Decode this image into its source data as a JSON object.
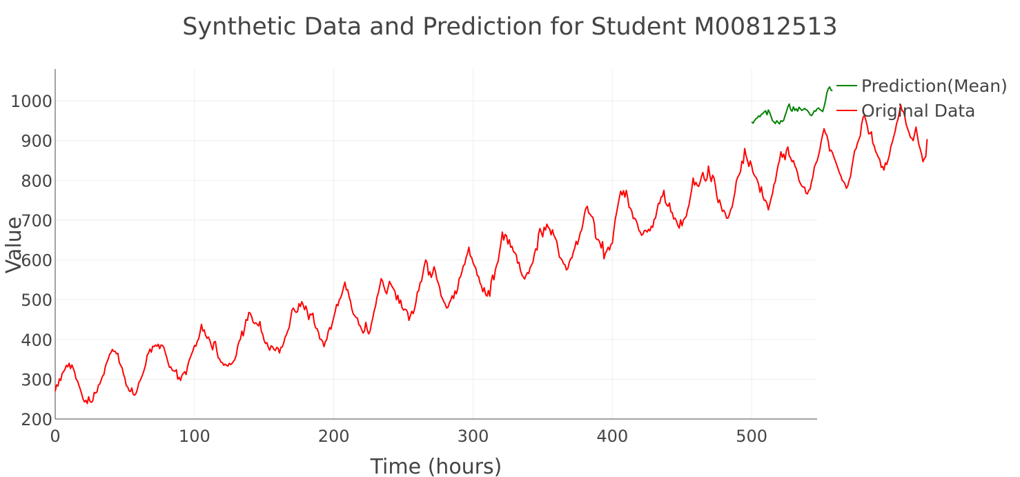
{
  "chart_data": {
    "type": "line",
    "title": "Synthetic Data and Prediction for Student M00812513",
    "xlabel": "Time (hours)",
    "ylabel": "Value",
    "xlim": [
      0,
      547
    ],
    "ylim": [
      200,
      1080
    ],
    "x_ticks": [
      0,
      100,
      200,
      300,
      400,
      500
    ],
    "y_ticks": [
      200,
      300,
      400,
      500,
      600,
      700,
      800,
      900,
      1000
    ],
    "grid": true,
    "legend_position": "top-right",
    "series": [
      {
        "name": "Prediction(Mean)",
        "color": "#008000",
        "x_start": 500,
        "values": [
          947,
          944,
          950,
          955,
          957,
          962,
          960,
          966,
          968,
          972,
          975,
          965,
          977,
          970,
          960,
          950,
          947,
          943,
          950,
          946,
          942,
          950,
          948,
          951,
          963,
          973,
          985,
          992,
          978,
          974,
          985,
          976,
          980,
          974,
          984,
          980,
          976,
          978,
          981,
          978,
          976,
          971,
          965,
          963,
          968,
          975,
          974,
          980,
          982,
          978,
          976,
          973,
          985,
          1000,
          1020,
          1030,
          1035,
          1027,
          1025
        ]
      },
      {
        "name": "Original Data",
        "color": "#ff0000",
        "x_start": 0,
        "values": [
          270,
          286,
          283,
          301,
          297,
          315,
          319,
          325,
          335,
          331,
          340,
          327,
          336,
          327,
          317,
          300,
          296,
          285,
          275,
          263,
          250,
          243,
          247,
          239,
          256,
          244,
          242,
          246,
          267,
          265,
          268,
          285,
          288,
          298,
          308,
          312,
          332,
          342,
          350,
          362,
          367,
          375,
          370,
          370,
          364,
          365,
          342,
          335,
          329,
          313,
          303,
          284,
          281,
          271,
          269,
          278,
          262,
          260,
          264,
          275,
          291,
          297,
          305,
          314,
          325,
          338,
          360,
          366,
          376,
          368,
          383,
          382,
          386,
          383,
          388,
          377,
          386,
          385,
          380,
          367,
          356,
          342,
          330,
          331,
          323,
          321,
          320,
          324,
          300,
          305,
          297,
          310,
          315,
          319,
          312,
          332,
          346,
          355,
          364,
          373,
          385,
          383,
          395,
          402,
          418,
          438,
          421,
          424,
          410,
          403,
          406,
          398,
          385,
          374,
          393,
          395,
          372,
          354,
          351,
          343,
          342,
          335,
          338,
          335,
          333,
          340,
          337,
          340,
          345,
          350,
          361,
          383,
          395,
          401,
          421,
          409,
          429,
          450,
          448,
          468,
          466,
          458,
          444,
          440,
          442,
          438,
          434,
          445,
          420,
          413,
          397,
          390,
          392,
          380,
          373,
          384,
          382,
          375,
          372,
          380,
          378,
          366,
          380,
          381,
          391,
          405,
          412,
          422,
          430,
          453,
          474,
          479,
          472,
          468,
          470,
          490,
          483,
          495,
          487,
          475,
          484,
          470,
          450,
          464,
          462,
          466,
          441,
          429,
          427,
          418,
          401,
          400,
          395,
          382,
          395,
          400,
          420,
          430,
          426,
          442,
          456,
          470,
          488,
          485,
          500,
          505,
          516,
          531,
          544,
          525,
          525,
          508,
          496,
          476,
          464,
          460,
          455,
          454,
          437,
          434,
          425,
          416,
          421,
          443,
          425,
          414,
          420,
          439,
          454,
          472,
          484,
          506,
          517,
          534,
          553,
          547,
          533,
          521,
          515,
          531,
          546,
          539,
          532,
          527,
          520,
          500,
          511,
          491,
          499,
          480,
          474,
          476,
          475,
          468,
          448,
          460,
          471,
          465,
          477,
          494,
          519,
          523,
          543,
          546,
          566,
          586,
          600,
          593,
          562,
          570,
          556,
          567,
          583,
          571,
          551,
          542,
          531,
          510,
          503,
          495,
          489,
          479,
          481,
          492,
          499,
          510,
          503,
          522,
          515,
          528,
          553,
          558,
          570,
          585,
          589,
          606,
          616,
          632,
          610,
          606,
          593,
          585,
          579,
          561,
          558,
          542,
          535,
          520,
          530,
          513,
          509,
          523,
          509,
          545,
          562,
          550,
          575,
          588,
          596,
          620,
          642,
          670,
          650,
          664,
          661,
          640,
          651,
          632,
          634,
          621,
          618,
          613,
          592,
          594,
          574,
          563,
          557,
          552,
          561,
          568,
          566,
          581,
          587,
          595,
          615,
          628,
          625,
          665,
          679,
          669,
          658,
          682,
          675,
          690,
          682,
          678,
          663,
          676,
          662,
          655,
          648,
          628,
          607,
          604,
          599,
          590,
          588,
          575,
          578,
          593,
          603,
          605,
          620,
          630,
          647,
          639,
          653,
          669,
          675,
          693,
          716,
          730,
          735,
          718,
          715,
          710,
          707,
          692,
          656,
          651,
          651,
          644,
          630,
          646,
          603,
          617,
          623,
          632,
          625,
          639,
          642,
          672,
          701,
          718,
          737,
          756,
          773,
          763,
          774,
          758,
          775,
          757,
          732,
          730,
          722,
          704,
          705,
          700,
          690,
          675,
          670,
          662,
          665,
          674,
          674,
          670,
          677,
          673,
          685,
          682,
          702,
          705,
          724,
          742,
          742,
          758,
          760,
          775,
          746,
          738,
          735,
          743,
          721,
          719,
          703,
          705,
          698,
          687,
          680,
          701,
          686,
          700,
          705,
          709,
          726,
          738,
          758,
          778,
          806,
          788,
          795,
          787,
          785,
          795,
          810,
          820,
          804,
          798,
          805,
          836,
          812,
          797,
          813,
          806,
          787,
          760,
          744,
          751,
          736,
          722,
          725,
          718,
          705,
          705,
          714,
          727,
          733,
          752,
          770,
          798,
          808,
          814,
          822,
          848,
          843,
          880,
          862,
          850,
          835,
          849,
          837,
          820,
          812,
          808,
          801,
          790,
          770,
          784,
          760,
          750,
          750,
          742,
          726,
          740,
          755,
          767,
          789,
          797,
          819,
          838,
          850,
          872,
          858,
          866,
          852,
          876,
          884,
          862,
          856,
          847,
          850,
          837,
          830,
          818,
          800,
          792,
          786,
          783,
          783,
          768,
          766,
          775,
          778,
          796,
          810,
          833,
          842,
          849,
          862,
          878,
          899,
          915,
          930,
          919,
          913,
          898,
          874,
          876,
          870,
          859,
          850,
          840,
          830,
          819,
          812,
          800,
          797,
          791,
          780,
          786,
          800,
          810,
          834,
          856,
          875,
          880,
          894,
          903,
          912,
          942,
          958,
          964,
          951,
          937,
          917,
          918,
          922,
          893,
          887,
          873,
          866,
          858,
          852,
          833,
          835,
          826,
          844,
          840,
          852,
          865,
          886,
          896,
          910,
          923,
          942,
          953,
          970,
          990,
          975,
          973,
          960,
          940,
          930,
          920,
          908,
          906,
          900,
          917,
          934,
          912,
          891,
          879,
          866,
          847,
          855,
          859,
          904
        ]
      }
    ]
  }
}
